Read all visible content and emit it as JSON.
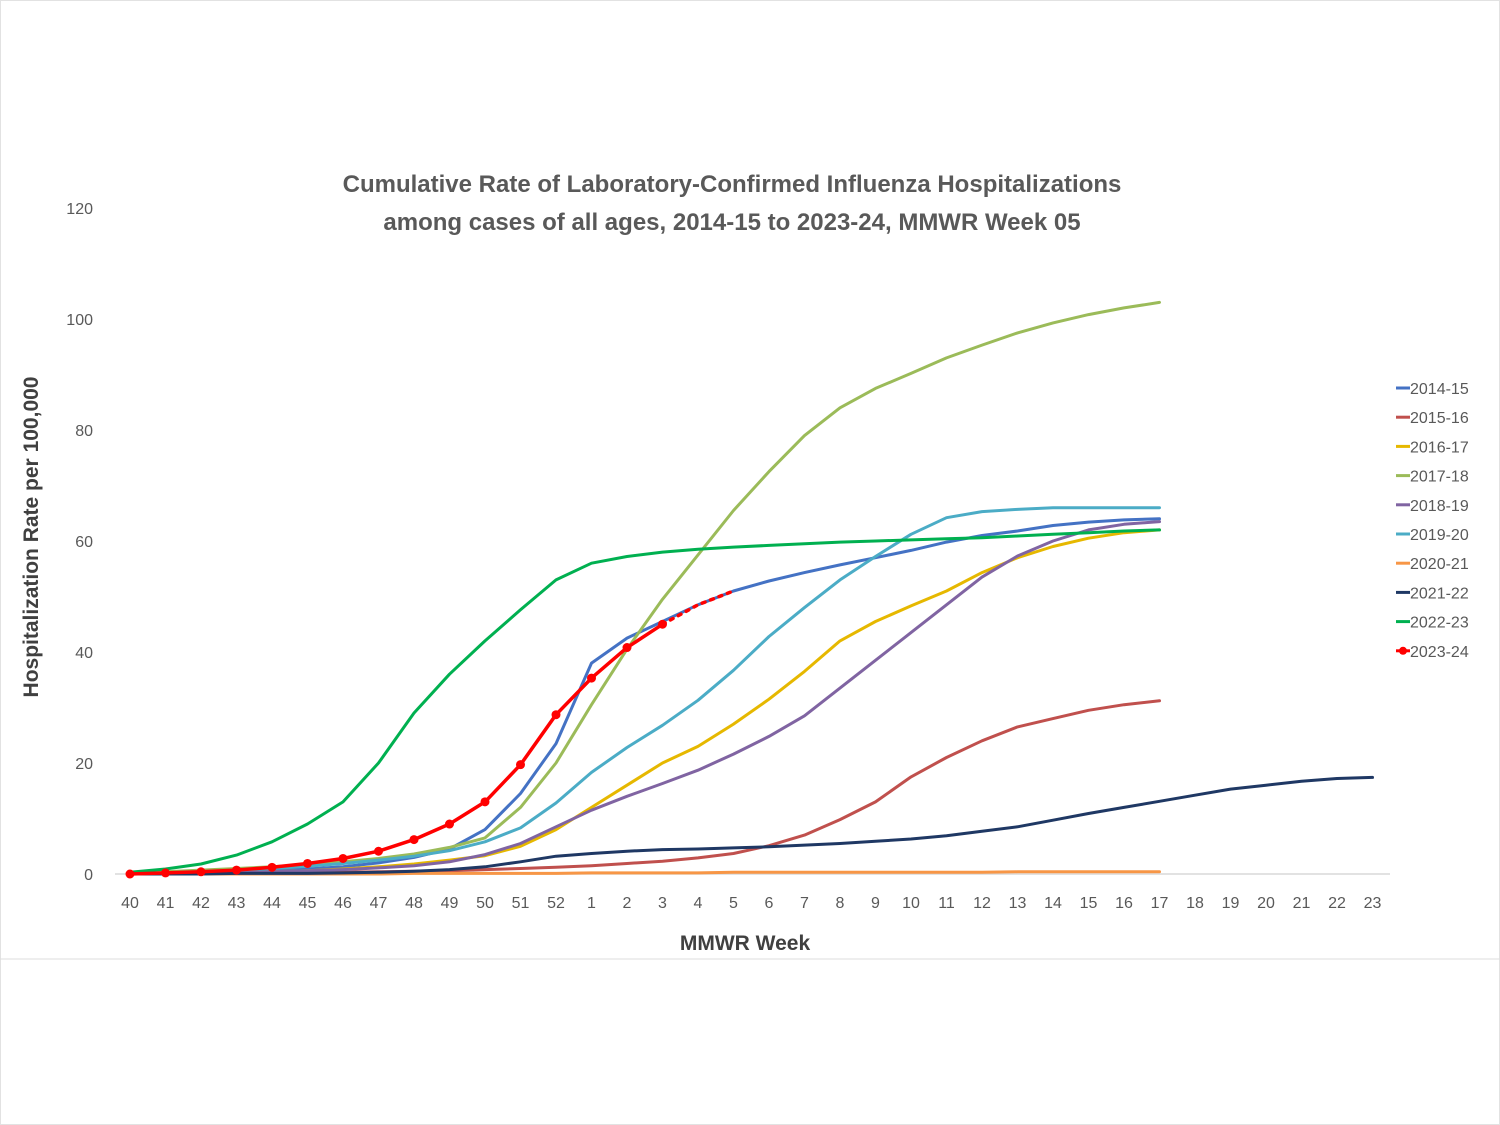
{
  "chart_data": {
    "type": "line",
    "title_lines": [
      "Cumulative Rate of Laboratory-Confirmed Influenza Hospitalizations",
      "among cases of all ages, 2014-15 to 2023-24, MMWR Week 05"
    ],
    "xlabel": "MMWR Week",
    "ylabel": "Hospitalization Rate per 100,000",
    "ylim": [
      0,
      120
    ],
    "yticks": [
      "0",
      "20",
      "40",
      "60",
      "80",
      "100",
      "120"
    ],
    "categories": [
      "40",
      "41",
      "42",
      "43",
      "44",
      "45",
      "46",
      "47",
      "48",
      "49",
      "50",
      "51",
      "52",
      "1",
      "2",
      "3",
      "4",
      "5",
      "6",
      "7",
      "8",
      "9",
      "10",
      "11",
      "12",
      "13",
      "14",
      "15",
      "16",
      "17",
      "18",
      "19",
      "20",
      "21",
      "22",
      "23"
    ],
    "grid": false,
    "legend_position": "right",
    "series": [
      {
        "name": "2014-15",
        "color": "#4472c4",
        "values": [
          0,
          0.1,
          0.2,
          0.4,
          0.6,
          0.9,
          1.3,
          2,
          3,
          4.5,
          8,
          14.5,
          23.5,
          38,
          42.5,
          45.5,
          48.5,
          51,
          52.8,
          54.3,
          55.7,
          57,
          58.3,
          59.8,
          61,
          61.8,
          62.8,
          63.4,
          63.8,
          64,
          null,
          null,
          null,
          null,
          null,
          null
        ]
      },
      {
        "name": "2015-16",
        "color": "#c0504d",
        "values": [
          0,
          0,
          0.1,
          0.1,
          0.2,
          0.2,
          0.3,
          0.4,
          0.5,
          0.6,
          0.8,
          1,
          1.2,
          1.5,
          1.9,
          2.3,
          2.9,
          3.7,
          5.1,
          7,
          9.8,
          13,
          17.5,
          21,
          24,
          26.5,
          28,
          29.5,
          30.5,
          31.2,
          null,
          null,
          null,
          null,
          null,
          null
        ]
      },
      {
        "name": "2016-17",
        "color": "#e6b800",
        "values": [
          0,
          0.1,
          0.2,
          0.3,
          0.4,
          0.6,
          0.9,
          1.3,
          1.8,
          2.5,
          3.3,
          5,
          8,
          12,
          16,
          20,
          23,
          27,
          31.5,
          36.5,
          42,
          45.5,
          48.3,
          51,
          54.3,
          57,
          59,
          60.5,
          61.5,
          62,
          null,
          null,
          null,
          null,
          null,
          null
        ]
      },
      {
        "name": "2017-18",
        "color": "#9bbb59",
        "values": [
          0.2,
          0.4,
          0.7,
          1,
          1.3,
          1.7,
          2.2,
          2.8,
          3.6,
          4.8,
          6.5,
          12,
          20,
          30.5,
          40.5,
          49.5,
          57.5,
          65.5,
          72.5,
          79,
          84,
          87.5,
          90.2,
          93,
          95.3,
          97.5,
          99.3,
          100.8,
          102,
          103,
          null,
          null,
          null,
          null,
          null,
          null
        ]
      },
      {
        "name": "2018-19",
        "color": "#8064a2",
        "values": [
          0,
          0.1,
          0.2,
          0.3,
          0.4,
          0.6,
          0.8,
          1.1,
          1.5,
          2.2,
          3.5,
          5.5,
          8.5,
          11.5,
          14,
          16.3,
          18.7,
          21.6,
          24.8,
          28.5,
          33.5,
          38.5,
          43.5,
          48.5,
          53.5,
          57.3,
          60,
          62,
          63,
          63.5,
          null,
          null,
          null,
          null,
          null,
          null
        ]
      },
      {
        "name": "2019-20",
        "color": "#4bacc6",
        "values": [
          0.1,
          0.2,
          0.4,
          0.7,
          1,
          1.4,
          1.9,
          2.5,
          3.2,
          4.2,
          5.8,
          8.3,
          12.8,
          18.3,
          22.8,
          26.8,
          31.3,
          36.7,
          42.8,
          48,
          53,
          57.2,
          61.2,
          64.2,
          65.3,
          65.7,
          66,
          66,
          66,
          66,
          null,
          null,
          null,
          null,
          null,
          null
        ]
      },
      {
        "name": "2020-21",
        "color": "#f79646",
        "values": [
          0,
          0,
          0,
          0,
          0,
          0,
          0,
          0,
          0.1,
          0.1,
          0.1,
          0.1,
          0.1,
          0.2,
          0.2,
          0.2,
          0.2,
          0.3,
          0.3,
          0.3,
          0.3,
          0.3,
          0.3,
          0.3,
          0.3,
          0.4,
          0.4,
          0.4,
          0.4,
          0.4,
          null,
          null,
          null,
          null,
          null,
          null
        ]
      },
      {
        "name": "2021-22",
        "color": "#1f3864",
        "values": [
          0,
          0,
          0,
          0.1,
          0.1,
          0.1,
          0.2,
          0.3,
          0.5,
          0.8,
          1.3,
          2.2,
          3.2,
          3.7,
          4.1,
          4.4,
          4.5,
          4.7,
          4.9,
          5.2,
          5.5,
          5.9,
          6.3,
          6.9,
          7.7,
          8.5,
          9.7,
          10.9,
          12,
          13.1,
          14.2,
          15.3,
          16,
          16.7,
          17.2,
          17.4
        ]
      },
      {
        "name": "2022-23",
        "color": "#00b050",
        "values": [
          0.3,
          0.9,
          1.8,
          3.4,
          5.8,
          9,
          13,
          20,
          29,
          36,
          42,
          47.6,
          53,
          56,
          57.2,
          58,
          58.5,
          58.9,
          59.2,
          59.5,
          59.8,
          60,
          60.2,
          60.4,
          60.6,
          60.9,
          61.2,
          61.5,
          61.8,
          62,
          null,
          null,
          null,
          null,
          null,
          null
        ]
      },
      {
        "name": "2023-24",
        "color": "#ff0000",
        "values": [
          0,
          0.2,
          0.4,
          0.7,
          1.2,
          1.9,
          2.8,
          4.1,
          6.2,
          9,
          13,
          19.7,
          28.7,
          35.3,
          40.8,
          45,
          null,
          null,
          null,
          null,
          null,
          null,
          null,
          null,
          null,
          null,
          null,
          null,
          null,
          null,
          null,
          null,
          null,
          null,
          null,
          null
        ],
        "markers": true,
        "projection": [
          {
            "x": "3",
            "y": 45
          },
          {
            "x": "4",
            "y": 48.5
          },
          {
            "x": "5",
            "y": 51
          }
        ]
      }
    ]
  }
}
